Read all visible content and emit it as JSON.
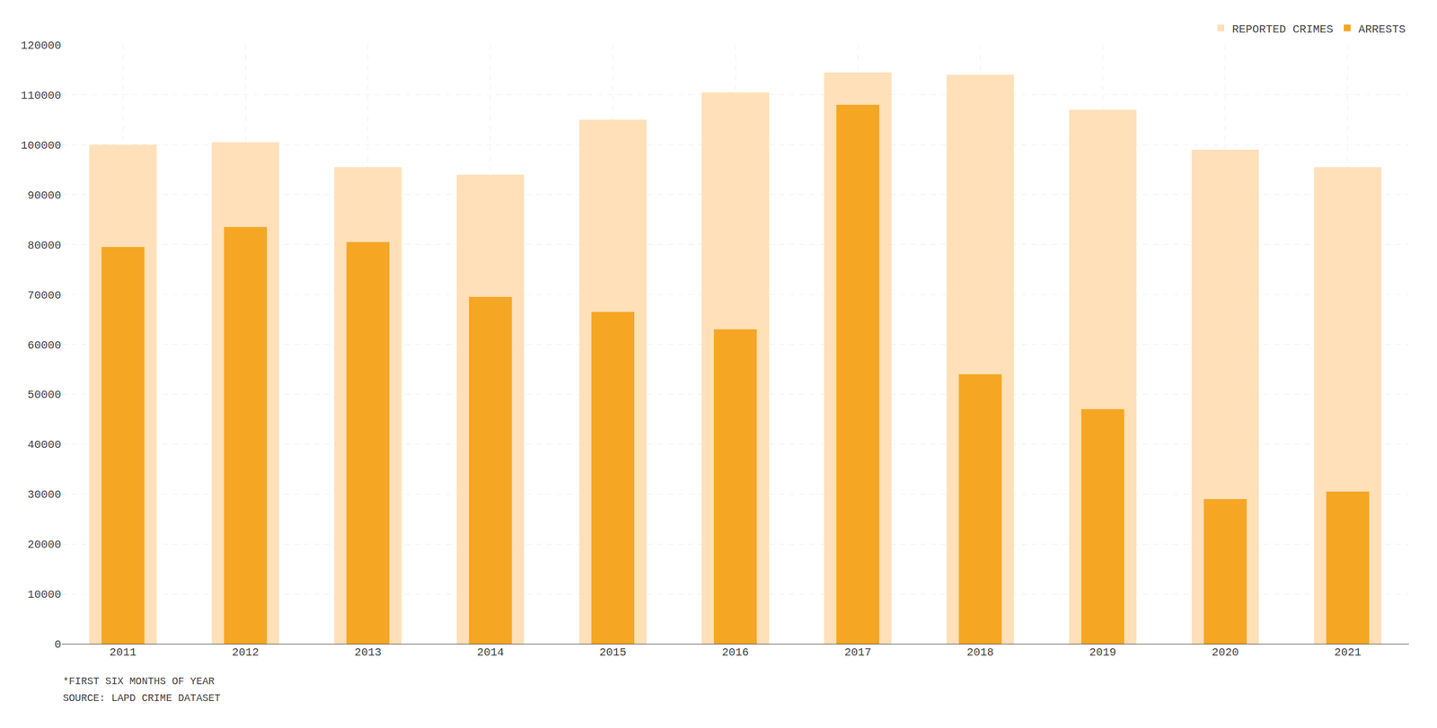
{
  "chart_data": {
    "type": "bar",
    "categories": [
      "2011",
      "2012",
      "2013",
      "2014",
      "2015",
      "2016",
      "2017",
      "2018",
      "2019",
      "2020",
      "2021"
    ],
    "series": [
      {
        "name": "REPORTED CRIMES",
        "color": "#FFE0B8",
        "values": [
          100000,
          100500,
          95500,
          94000,
          105000,
          110500,
          114500,
          114000,
          107000,
          99000,
          95500
        ]
      },
      {
        "name": "ARRESTS",
        "color": "#F5A623",
        "values": [
          79500,
          83500,
          80500,
          69500,
          66500,
          63000,
          108000,
          54000,
          47000,
          29000,
          30500
        ]
      }
    ],
    "ylim": [
      0,
      120000
    ],
    "yticks": [
      0,
      10000,
      20000,
      30000,
      40000,
      50000,
      60000,
      70000,
      80000,
      90000,
      100000,
      110000,
      120000
    ],
    "grid": true,
    "legend": "upper right",
    "annotations": [
      "*FIRST SIX MONTHS OF YEAR",
      "SOURCE: LAPD CRIME DATASET"
    ]
  }
}
